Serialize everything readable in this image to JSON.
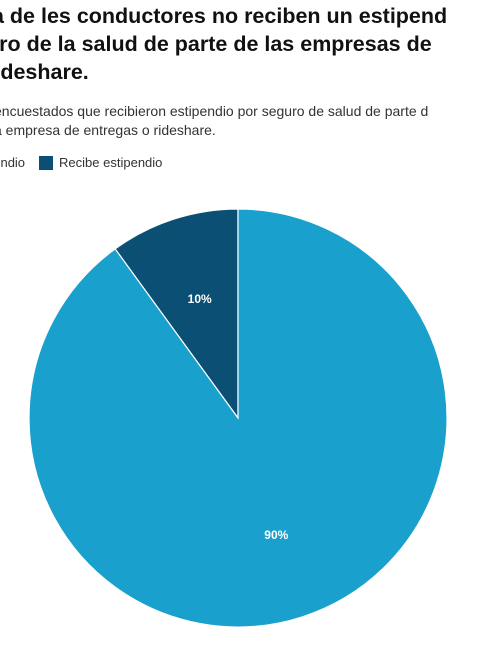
{
  "title_lines": [
    "ía de les conductores no reciben un estipend",
    "uro de la salud de parte de las empresas de",
    " rideshare."
  ],
  "subtitle_lines": [
    "encuestados que recibieron estipendio por seguro de salud de parte d",
    "a empresa de entregas o rideshare."
  ],
  "legend": [
    {
      "label": "pendio",
      "color": "#1aa0cc"
    },
    {
      "label": "Recibe estipendio",
      "color": "#0b4f74"
    }
  ],
  "chart_data": {
    "type": "pie",
    "slices": [
      {
        "label": "pendio",
        "value": 90,
        "display": "90%",
        "color": "#1aa0cc"
      },
      {
        "label": "Recibe estipendio",
        "value": 10,
        "display": "10%",
        "color": "#0b4f74"
      }
    ]
  }
}
